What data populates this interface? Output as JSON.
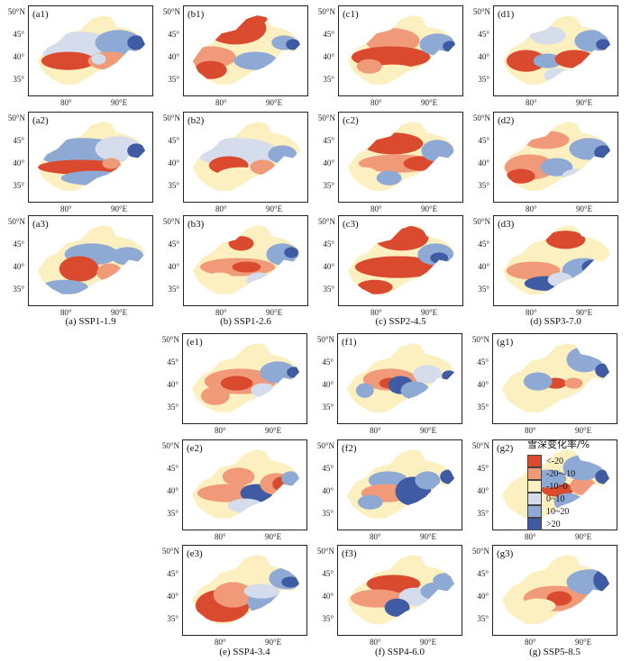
{
  "axes": {
    "lat_ticks": [
      "50°N",
      "45°",
      "40°",
      "35°"
    ],
    "lon_ticks": [
      "80°",
      "90°E"
    ]
  },
  "scenarios": [
    {
      "id": "a",
      "caption": "(a) SSP1-1.9",
      "panels": [
        "(a1)",
        "(a2)",
        "(a3)"
      ]
    },
    {
      "id": "b",
      "caption": "(b) SSP1-2.6",
      "panels": [
        "(b1)",
        "(b2)",
        "(b3)"
      ]
    },
    {
      "id": "c",
      "caption": "(c) SSP2-4.5",
      "panels": [
        "(c1)",
        "(c2)",
        "(c3)"
      ]
    },
    {
      "id": "d",
      "caption": "(d) SSP3-7.0",
      "panels": [
        "(d1)",
        "(d2)",
        "(d3)"
      ]
    },
    {
      "id": "e",
      "caption": "(e) SSP4-3.4",
      "panels": [
        "(e1)",
        "(e2)",
        "(e3)"
      ]
    },
    {
      "id": "f",
      "caption": "(f) SSP4-6.0",
      "panels": [
        "(f1)",
        "(f2)",
        "(f3)"
      ]
    },
    {
      "id": "g",
      "caption": "(g) SSP5-8.5",
      "panels": [
        "(g1)",
        "(g2)",
        "(g3)"
      ]
    }
  ],
  "legend": {
    "title": "雪深变化率/%",
    "items": [
      {
        "label": "<-20",
        "color": "#d94a2e"
      },
      {
        "label": "-20~-10",
        "color": "#f09a7a"
      },
      {
        "label": "-10~0",
        "color": "#fcefc0"
      },
      {
        "label": "0~10",
        "color": "#d5dcec"
      },
      {
        "label": "10~20",
        "color": "#8eaad4"
      },
      {
        "label": ">20",
        "color": "#3f5ba3"
      }
    ]
  }
}
